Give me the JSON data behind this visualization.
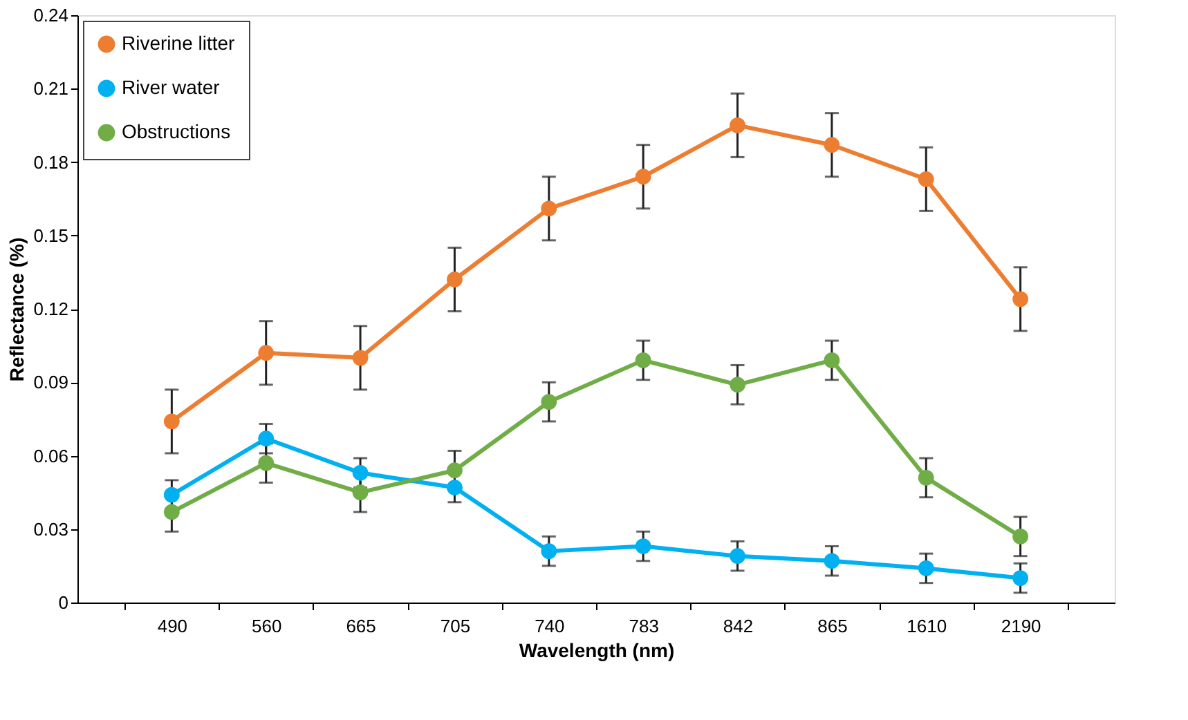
{
  "chart_data": {
    "type": "line",
    "xlabel": "Wavelength (nm)",
    "ylabel": "Reflectance (%)",
    "categories": [
      "490",
      "560",
      "665",
      "705",
      "740",
      "783",
      "842",
      "865",
      "1610",
      "2190"
    ],
    "ylim": [
      0,
      0.24
    ],
    "yticks": [
      {
        "value": 0,
        "label": "0"
      },
      0.03,
      0.06,
      0.09,
      0.12,
      0.15,
      0.18,
      0.21,
      0.24
    ],
    "series": [
      {
        "name": "Riverine litter",
        "color": "#ed7d31",
        "values": [
          0.074,
          0.102,
          0.1,
          0.132,
          0.161,
          0.174,
          0.195,
          0.187,
          0.173,
          0.124
        ],
        "errors": [
          0.013,
          0.013,
          0.013,
          0.013,
          0.013,
          0.013,
          0.013,
          0.013,
          0.013,
          0.013
        ]
      },
      {
        "name": "River water",
        "color": "#00b0f0",
        "values": [
          0.044,
          0.067,
          0.053,
          0.047,
          0.021,
          0.023,
          0.019,
          0.017,
          0.014,
          0.01
        ],
        "errors": [
          0.006,
          0.006,
          0.006,
          0.006,
          0.006,
          0.006,
          0.006,
          0.006,
          0.006,
          0.006
        ]
      },
      {
        "name": "Obstructions",
        "color": "#70ad47",
        "values": [
          0.037,
          0.057,
          0.045,
          0.054,
          0.082,
          0.099,
          0.089,
          0.099,
          0.051,
          0.027
        ],
        "errors": [
          0.008,
          0.008,
          0.008,
          0.008,
          0.008,
          0.008,
          0.008,
          0.008,
          0.008,
          0.008
        ]
      }
    ],
    "marker": "circle",
    "line_style": "solid",
    "legend": "top left",
    "grid": false
  }
}
